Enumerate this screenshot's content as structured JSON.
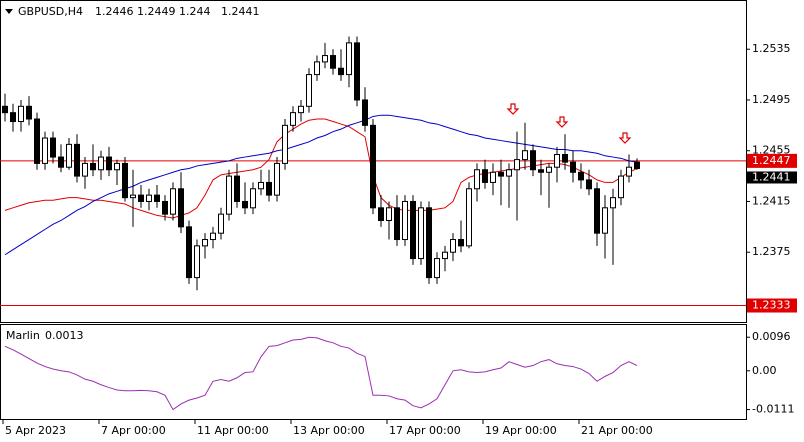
{
  "chart_data": {
    "type": "candlestick",
    "title": "GBPUSD,H4",
    "categories": [
      "5 Apr 2023",
      null,
      null,
      null,
      null,
      null,
      null,
      null,
      null,
      null,
      null,
      null,
      "7 Apr 00:00",
      null,
      null,
      null,
      null,
      null,
      null,
      null,
      null,
      null,
      null,
      null,
      "11 Apr 00:00",
      null,
      null,
      null,
      null,
      null,
      null,
      null,
      null,
      null,
      null,
      null,
      "13 Apr 00:00",
      null,
      null,
      null,
      null,
      null,
      null,
      null,
      null,
      null,
      null,
      null,
      "17 Apr 00:00",
      null,
      null,
      null,
      null,
      null,
      null,
      null,
      null,
      null,
      null,
      null,
      "19 Apr 00:00",
      null,
      null,
      null,
      null,
      null,
      null,
      null,
      null,
      null,
      null,
      null,
      "21 Apr 00:00",
      null,
      null,
      null,
      null,
      null,
      null,
      null
    ],
    "open": [
      1.249,
      1.2485,
      1.2478,
      1.249,
      1.248,
      1.2445,
      1.2465,
      1.245,
      1.2442,
      1.246,
      1.2435,
      1.2445,
      1.244,
      1.245,
      1.244,
      1.2445,
      1.2418,
      1.242,
      1.2415,
      1.242,
      1.2415,
      1.2405,
      1.2425,
      1.2395,
      1.2355,
      1.238,
      1.2385,
      1.239,
      1.2405,
      1.2435,
      1.2415,
      1.241,
      1.2425,
      1.243,
      1.242,
      1.2445,
      1.2475,
      1.2485,
      1.249,
      1.2515,
      1.2525,
      1.253,
      1.252,
      1.2515,
      1.254,
      1.2495,
      1.2475,
      1.241,
      1.24,
      1.241,
      1.2385,
      1.2415,
      1.237,
      1.241,
      1.2355,
      1.237,
      1.2375,
      1.2385,
      1.238,
      1.2425,
      1.244,
      1.243,
      1.2438,
      1.2435,
      1.244,
      1.2448,
      1.2455,
      1.244,
      1.2438,
      1.2442,
      1.2452,
      1.2446,
      1.2438,
      1.2432,
      1.2425,
      1.239,
      1.241,
      1.2418,
      1.2435,
      1.2446
    ],
    "high": [
      1.25,
      1.2492,
      1.2495,
      1.2498,
      1.2485,
      1.247,
      1.247,
      1.246,
      1.2465,
      1.2468,
      1.245,
      1.246,
      1.2455,
      1.2458,
      1.2448,
      1.245,
      1.244,
      1.2428,
      1.2425,
      1.2428,
      1.242,
      1.243,
      1.2438,
      1.24,
      1.2385,
      1.239,
      1.2395,
      1.241,
      1.244,
      1.2445,
      1.243,
      1.243,
      1.244,
      1.244,
      1.245,
      1.248,
      1.249,
      1.2495,
      1.252,
      1.253,
      1.254,
      1.2535,
      1.2535,
      1.2545,
      1.2545,
      1.2505,
      1.248,
      1.242,
      1.2415,
      1.242,
      1.242,
      1.242,
      1.2415,
      1.2415,
      1.2375,
      1.238,
      1.239,
      1.24,
      1.243,
      1.2445,
      1.2448,
      1.2445,
      1.2448,
      1.2445,
      1.247,
      1.2477,
      1.246,
      1.2448,
      1.2445,
      1.2458,
      1.2468,
      1.2455,
      1.2445,
      1.244,
      1.243,
      1.242,
      1.2425,
      1.244,
      1.2452,
      1.2449
    ],
    "low": [
      1.2478,
      1.247,
      1.247,
      1.2475,
      1.244,
      1.244,
      1.2445,
      1.2438,
      1.244,
      1.243,
      1.2425,
      1.2435,
      1.2432,
      1.2435,
      1.2428,
      1.2415,
      1.2395,
      1.241,
      1.2408,
      1.241,
      1.24,
      1.24,
      1.239,
      1.235,
      1.2345,
      1.237,
      1.2378,
      1.2385,
      1.24,
      1.241,
      1.2405,
      1.2405,
      1.242,
      1.2415,
      1.2415,
      1.244,
      1.247,
      1.2478,
      1.2485,
      1.251,
      1.252,
      1.2515,
      1.251,
      1.2505,
      1.249,
      1.247,
      1.2405,
      1.2395,
      1.2385,
      1.238,
      1.238,
      1.2365,
      1.2365,
      1.235,
      1.235,
      1.236,
      1.2368,
      1.2375,
      1.2378,
      1.2415,
      1.2425,
      1.242,
      1.2412,
      1.241,
      1.24,
      1.244,
      1.2435,
      1.242,
      1.241,
      1.243,
      1.244,
      1.243,
      1.2425,
      1.242,
      1.238,
      1.237,
      1.2365,
      1.2412,
      1.243,
      1.244
    ],
    "close": [
      1.2485,
      1.2478,
      1.249,
      1.248,
      1.2445,
      1.2465,
      1.245,
      1.2442,
      1.246,
      1.2435,
      1.2445,
      1.244,
      1.245,
      1.244,
      1.2445,
      1.2418,
      1.242,
      1.2415,
      1.242,
      1.2415,
      1.2405,
      1.2425,
      1.2395,
      1.2355,
      1.238,
      1.2385,
      1.239,
      1.2405,
      1.2435,
      1.2415,
      1.241,
      1.2425,
      1.243,
      1.242,
      1.2445,
      1.2475,
      1.2485,
      1.249,
      1.2515,
      1.2525,
      1.253,
      1.252,
      1.2515,
      1.254,
      1.2495,
      1.2475,
      1.241,
      1.24,
      1.241,
      1.2385,
      1.2415,
      1.237,
      1.241,
      1.2355,
      1.237,
      1.2375,
      1.2385,
      1.238,
      1.2425,
      1.244,
      1.243,
      1.2438,
      1.2435,
      1.244,
      1.2448,
      1.2455,
      1.244,
      1.2438,
      1.2442,
      1.2452,
      1.2446,
      1.2438,
      1.2432,
      1.2425,
      1.239,
      1.241,
      1.2418,
      1.2435,
      1.2442,
      1.2441
    ],
    "up_color": "#ffffff",
    "down_color": "#000000",
    "ylim": [
      1.232,
      1.2573
    ],
    "yticks": [
      1.2375,
      1.2415,
      1.2455,
      1.2495,
      1.2535
    ],
    "overlays": [
      {
        "color": "#e00000",
        "values": [
          1.2408,
          1.241,
          1.2412,
          1.2414,
          1.2415,
          1.2416,
          1.2416,
          1.2417,
          1.2418,
          1.2418,
          1.2417,
          1.2416,
          1.2416,
          1.2415,
          1.2414,
          1.2413,
          1.241,
          1.2408,
          1.2406,
          1.2404,
          1.2403,
          1.2402,
          1.2404,
          1.2406,
          1.241,
          1.242,
          1.2432,
          1.2436,
          1.2437,
          1.2438,
          1.2439,
          1.244,
          1.2442,
          1.2448,
          1.2462,
          1.2468,
          1.2472,
          1.2476,
          1.2479,
          1.248,
          1.248,
          1.2478,
          1.2476,
          1.2474,
          1.247,
          1.2466,
          1.2435,
          1.2418,
          1.2412,
          1.2409,
          1.2408,
          1.2408,
          1.2408,
          1.2408,
          1.2409,
          1.241,
          1.2415,
          1.243,
          1.2434,
          1.2436,
          1.2437,
          1.2438,
          1.2439,
          1.244,
          1.2441,
          1.2442,
          1.2443,
          1.2444,
          1.2445,
          1.2445,
          1.2444,
          1.2442,
          1.2439,
          1.2436,
          1.2432,
          1.243,
          1.243,
          1.2434,
          1.2438,
          1.2441
        ]
      },
      {
        "color": "#0000c8",
        "values": [
          1.2373,
          1.2377,
          1.2381,
          1.2385,
          1.2389,
          1.2393,
          1.2397,
          1.24,
          1.2404,
          1.2408,
          1.2411,
          1.2415,
          1.2418,
          1.2421,
          1.2423,
          1.2425,
          1.2427,
          1.243,
          1.2432,
          1.2434,
          1.2436,
          1.2438,
          1.244,
          1.2441,
          1.2443,
          1.2444,
          1.2445,
          1.2446,
          1.2447,
          1.2449,
          1.245,
          1.2451,
          1.2452,
          1.2453,
          1.2455,
          1.2456,
          1.2458,
          1.246,
          1.2462,
          1.2465,
          1.2467,
          1.247,
          1.2472,
          1.2475,
          1.2477,
          1.2479,
          1.2482,
          1.2483,
          1.2483,
          1.2482,
          1.2481,
          1.248,
          1.2479,
          1.2477,
          1.2476,
          1.2474,
          1.2472,
          1.247,
          1.2468,
          1.2467,
          1.2465,
          1.2464,
          1.2463,
          1.2462,
          1.2461,
          1.246,
          1.2459,
          1.2458,
          1.2457,
          1.2456,
          1.2456,
          1.2455,
          1.2455,
          1.2454,
          1.2453,
          1.2451,
          1.245,
          1.2449,
          1.2447,
          1.2446
        ]
      }
    ],
    "hlines": [
      {
        "value": 1.2447,
        "color": "#e00000"
      },
      {
        "value": 1.2333,
        "color": "#e00000"
      }
    ],
    "indicator": {
      "type": "line",
      "name": "Marlin",
      "value": 0.0013,
      "color": "#9b30b0",
      "values": [
        0.007,
        0.006,
        0.0048,
        0.0035,
        0.0022,
        0.0012,
        0.0005,
        0.0,
        -0.0003,
        -0.0012,
        -0.0024,
        -0.003,
        -0.004,
        -0.0048,
        -0.0055,
        -0.0057,
        -0.0057,
        -0.0056,
        -0.0057,
        -0.006,
        -0.007,
        -0.0111,
        -0.0095,
        -0.0084,
        -0.0078,
        -0.007,
        -0.003,
        -0.0025,
        -0.003,
        -0.002,
        -0.0005,
        -0.0003,
        0.004,
        0.007,
        0.0072,
        0.008,
        0.0088,
        0.009,
        0.0096,
        0.0094,
        0.0086,
        0.008,
        0.007,
        0.0065,
        0.005,
        0.0041,
        -0.007,
        -0.007,
        -0.0072,
        -0.008,
        -0.0084,
        -0.01,
        -0.0106,
        -0.0095,
        -0.008,
        -0.004,
        0.0,
        0.0003,
        -0.0003,
        -0.0005,
        -0.0003,
        0.0003,
        0.0008,
        0.0026,
        0.0018,
        0.001,
        0.0015,
        0.0026,
        0.0032,
        0.002,
        0.0015,
        0.0012,
        0.0005,
        -0.0008,
        -0.003,
        -0.0016,
        -0.0005,
        0.0015,
        0.0026,
        0.0015
      ],
      "ylim": [
        -0.0138,
        0.0131
      ],
      "yticks": [
        0.0096,
        {
          "value": 0,
          "label": "0.00"
        },
        -0.0111
      ]
    }
  }
}
